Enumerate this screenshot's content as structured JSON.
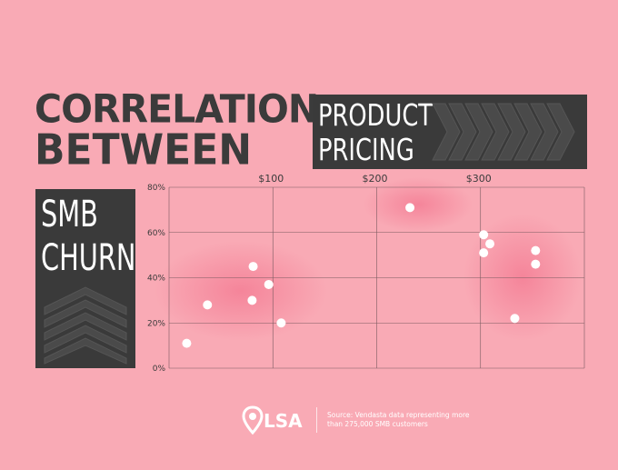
{
  "title": {
    "line1": "CORRELATION",
    "line2": "BETWEEN",
    "product_line1": "PRODUCT",
    "product_line2": "PRICING",
    "churn_line1": "SMB",
    "churn_line2": "CHURN"
  },
  "chart_data": {
    "type": "scatter",
    "title": "",
    "xlabel": "",
    "ylabel": "",
    "x_ticks": [
      "$100",
      "$200",
      "$300"
    ],
    "y_ticks": [
      "0%",
      "20%",
      "40%",
      "60%",
      "80%"
    ],
    "xlim": [
      0,
      400
    ],
    "ylim": [
      0,
      80
    ],
    "grid": true,
    "points": [
      {
        "x": 17,
        "y": 11
      },
      {
        "x": 37,
        "y": 28
      },
      {
        "x": 81,
        "y": 45
      },
      {
        "x": 80,
        "y": 30
      },
      {
        "x": 96,
        "y": 37
      },
      {
        "x": 108,
        "y": 20
      },
      {
        "x": 232,
        "y": 71
      },
      {
        "x": 303,
        "y": 59
      },
      {
        "x": 309,
        "y": 55
      },
      {
        "x": 303,
        "y": 51
      },
      {
        "x": 333,
        "y": 22
      },
      {
        "x": 353,
        "y": 52
      },
      {
        "x": 353,
        "y": 46
      }
    ]
  },
  "footer": {
    "logo": "LSA",
    "source": "Source: Vendasta data representing more than 275,000 SMB customers"
  },
  "colors": {
    "background": "#f9aab5",
    "dark": "#3a3a3a",
    "point": "#ffffff",
    "glow": "#f47e95"
  }
}
